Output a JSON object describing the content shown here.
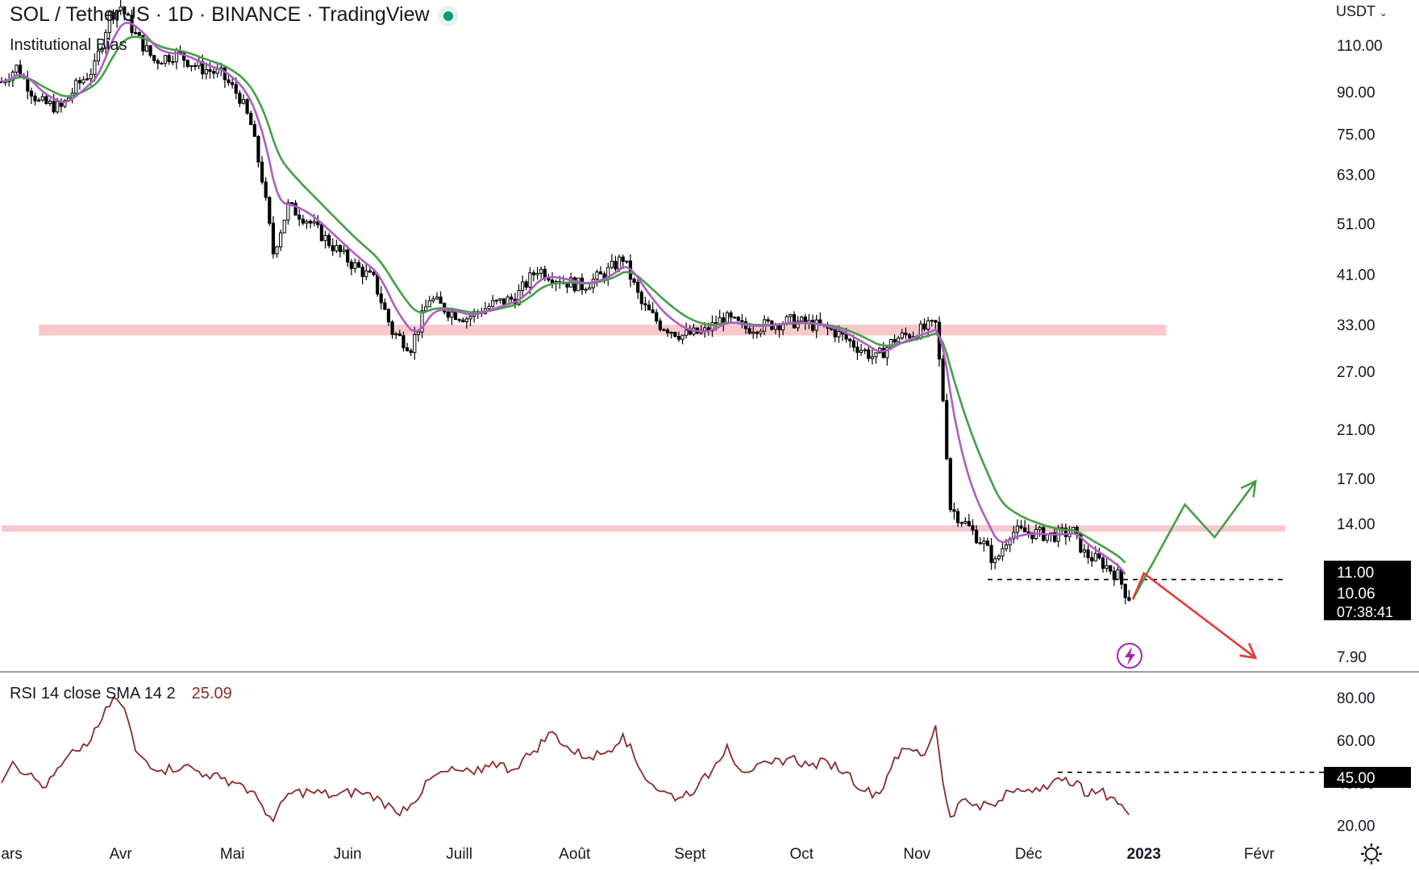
{
  "header": {
    "title": "SOL / TetherUS · 1D · BINANCE · TradingView",
    "indicator": "Institutional Bias",
    "currency": "USDT"
  },
  "rsi_legend": {
    "label": "RSI 14 close SMA 14 2",
    "value": "25.09"
  },
  "price_badges": {
    "level": "11.00",
    "last": "10.06",
    "countdown": "07:38:41"
  },
  "rsi_badge": "45.00",
  "colors": {
    "candle": "#000000",
    "ema_fast": "#b05cc7",
    "ema_slow": "#43a047",
    "support_zone": "#f8c9cc",
    "rsi": "#8b2a2a",
    "arrow_up": "#43a047",
    "arrow_down": "#e53935"
  },
  "icons": {
    "flash": "lightning-icon",
    "settings": "gear-icon"
  },
  "chart_data": [
    {
      "type": "candlestick",
      "title": "SOL / TetherUS · 1D · BINANCE · TradingView",
      "y_scale": "log",
      "y_ticks": [
        "110.00",
        "90.00",
        "75.00",
        "63.00",
        "51.00",
        "41.00",
        "33.00",
        "27.00",
        "21.00",
        "17.00",
        "14.00",
        "11.00",
        "7.90"
      ],
      "x_ticks": [
        "Mars",
        "Avr",
        "Mai",
        "Juin",
        "Juill",
        "Août",
        "Sept",
        "Oct",
        "Nov",
        "Déc",
        "2023",
        "Févr"
      ],
      "price_path": [
        {
          "date": "2022-02-28",
          "close": 94
        },
        {
          "date": "2022-03-04",
          "close": 100
        },
        {
          "date": "2022-03-10",
          "close": 86
        },
        {
          "date": "2022-03-16",
          "close": 84
        },
        {
          "date": "2022-03-20",
          "close": 92
        },
        {
          "date": "2022-03-25",
          "close": 100
        },
        {
          "date": "2022-03-29",
          "close": 125
        },
        {
          "date": "2022-04-01",
          "close": 130
        },
        {
          "date": "2022-04-05",
          "close": 115
        },
        {
          "date": "2022-04-10",
          "close": 103
        },
        {
          "date": "2022-04-16",
          "close": 106
        },
        {
          "date": "2022-04-22",
          "close": 100
        },
        {
          "date": "2022-04-28",
          "close": 97
        },
        {
          "date": "2022-05-03",
          "close": 88
        },
        {
          "date": "2022-05-06",
          "close": 78
        },
        {
          "date": "2022-05-09",
          "close": 62
        },
        {
          "date": "2022-05-12",
          "close": 45
        },
        {
          "date": "2022-05-16",
          "close": 55
        },
        {
          "date": "2022-05-21",
          "close": 52
        },
        {
          "date": "2022-05-27",
          "close": 47
        },
        {
          "date": "2022-06-02",
          "close": 43
        },
        {
          "date": "2022-06-08",
          "close": 40
        },
        {
          "date": "2022-06-13",
          "close": 32
        },
        {
          "date": "2022-06-18",
          "close": 30
        },
        {
          "date": "2022-06-23",
          "close": 37
        },
        {
          "date": "2022-06-28",
          "close": 35
        },
        {
          "date": "2022-07-03",
          "close": 34
        },
        {
          "date": "2022-07-10",
          "close": 36
        },
        {
          "date": "2022-07-16",
          "close": 37
        },
        {
          "date": "2022-07-22",
          "close": 42
        },
        {
          "date": "2022-07-28",
          "close": 40
        },
        {
          "date": "2022-08-03",
          "close": 39
        },
        {
          "date": "2022-08-09",
          "close": 41
        },
        {
          "date": "2022-08-14",
          "close": 44
        },
        {
          "date": "2022-08-19",
          "close": 36
        },
        {
          "date": "2022-08-24",
          "close": 33
        },
        {
          "date": "2022-08-30",
          "close": 31.5
        },
        {
          "date": "2022-09-05",
          "close": 32
        },
        {
          "date": "2022-09-10",
          "close": 34
        },
        {
          "date": "2022-09-16",
          "close": 32.5
        },
        {
          "date": "2022-09-22",
          "close": 33
        },
        {
          "date": "2022-09-28",
          "close": 33.5
        },
        {
          "date": "2022-10-04",
          "close": 33
        },
        {
          "date": "2022-10-10",
          "close": 32
        },
        {
          "date": "2022-10-16",
          "close": 30
        },
        {
          "date": "2022-10-21",
          "close": 28.5
        },
        {
          "date": "2022-10-26",
          "close": 31
        },
        {
          "date": "2022-11-01",
          "close": 32
        },
        {
          "date": "2022-11-06",
          "close": 33
        },
        {
          "date": "2022-11-08",
          "close": 24
        },
        {
          "date": "2022-11-10",
          "close": 15
        },
        {
          "date": "2022-11-14",
          "close": 14
        },
        {
          "date": "2022-11-19",
          "close": 12.8
        },
        {
          "date": "2022-11-22",
          "close": 11.8
        },
        {
          "date": "2022-11-26",
          "close": 13.5
        },
        {
          "date": "2022-12-01",
          "close": 13.5
        },
        {
          "date": "2022-12-07",
          "close": 13.3
        },
        {
          "date": "2022-12-13",
          "close": 13.5
        },
        {
          "date": "2022-12-16",
          "close": 12.3
        },
        {
          "date": "2022-12-21",
          "close": 11.8
        },
        {
          "date": "2022-12-25",
          "close": 11.2
        },
        {
          "date": "2022-12-28",
          "close": 10.06
        }
      ],
      "ema_fast_name": "",
      "ema_slow_name": "",
      "support_zones": [
        {
          "low": 31.5,
          "high": 33,
          "from": "2022-03-10",
          "to": "2023-01-07"
        },
        {
          "low": 13.55,
          "high": 13.9,
          "from": "2022-02-28",
          "to": "2023-02-08"
        }
      ],
      "dashed_levels": [
        {
          "value": 11.0,
          "from": "2022-11-20",
          "to": "2023-02-08"
        }
      ],
      "scenario_up": [
        {
          "date": "2022-12-29",
          "value": 10.1
        },
        {
          "date": "2023-01-12",
          "value": 15.2
        },
        {
          "date": "2023-01-20",
          "value": 13.2
        },
        {
          "date": "2023-01-31",
          "value": 16.8
        }
      ],
      "scenario_down": [
        {
          "date": "2022-12-29",
          "value": 10.1
        },
        {
          "date": "2023-01-01",
          "value": 11.3
        },
        {
          "date": "2023-01-31",
          "value": 7.85
        }
      ]
    },
    {
      "type": "line",
      "title": "RSI 14 close SMA 14 2",
      "y_ticks": [
        "80.00",
        "60.00",
        "40.00",
        "20.00"
      ],
      "ylim": [
        18,
        88
      ],
      "current": 25.09,
      "dashed_level": 45.0,
      "rsi_path": [
        {
          "date": "2022-02-28",
          "value": 40
        },
        {
          "date": "2022-03-03",
          "value": 50
        },
        {
          "date": "2022-03-07",
          "value": 44
        },
        {
          "date": "2022-03-12",
          "value": 38
        },
        {
          "date": "2022-03-16",
          "value": 48
        },
        {
          "date": "2022-03-20",
          "value": 55
        },
        {
          "date": "2022-03-24",
          "value": 60
        },
        {
          "date": "2022-03-27",
          "value": 70
        },
        {
          "date": "2022-03-30",
          "value": 80
        },
        {
          "date": "2022-04-02",
          "value": 75
        },
        {
          "date": "2022-04-05",
          "value": 55
        },
        {
          "date": "2022-04-08",
          "value": 50
        },
        {
          "date": "2022-04-12",
          "value": 46
        },
        {
          "date": "2022-04-18",
          "value": 48
        },
        {
          "date": "2022-04-24",
          "value": 44
        },
        {
          "date": "2022-04-28",
          "value": 42
        },
        {
          "date": "2022-05-03",
          "value": 40
        },
        {
          "date": "2022-05-08",
          "value": 32
        },
        {
          "date": "2022-05-12",
          "value": 22
        },
        {
          "date": "2022-05-16",
          "value": 35
        },
        {
          "date": "2022-05-22",
          "value": 36
        },
        {
          "date": "2022-05-28",
          "value": 34
        },
        {
          "date": "2022-06-04",
          "value": 36
        },
        {
          "date": "2022-06-10",
          "value": 32
        },
        {
          "date": "2022-06-14",
          "value": 26
        },
        {
          "date": "2022-06-18",
          "value": 30
        },
        {
          "date": "2022-06-24",
          "value": 43
        },
        {
          "date": "2022-06-30",
          "value": 46
        },
        {
          "date": "2022-07-05",
          "value": 44
        },
        {
          "date": "2022-07-10",
          "value": 50
        },
        {
          "date": "2022-07-15",
          "value": 46
        },
        {
          "date": "2022-07-21",
          "value": 55
        },
        {
          "date": "2022-07-26",
          "value": 64
        },
        {
          "date": "2022-07-31",
          "value": 55
        },
        {
          "date": "2022-08-05",
          "value": 52
        },
        {
          "date": "2022-08-10",
          "value": 55
        },
        {
          "date": "2022-08-14",
          "value": 63
        },
        {
          "date": "2022-08-19",
          "value": 45
        },
        {
          "date": "2022-08-24",
          "value": 36
        },
        {
          "date": "2022-08-29",
          "value": 33
        },
        {
          "date": "2022-09-03",
          "value": 38
        },
        {
          "date": "2022-09-07",
          "value": 46
        },
        {
          "date": "2022-09-11",
          "value": 58
        },
        {
          "date": "2022-09-14",
          "value": 47
        },
        {
          "date": "2022-09-18",
          "value": 46
        },
        {
          "date": "2022-09-23",
          "value": 49
        },
        {
          "date": "2022-09-28",
          "value": 52
        },
        {
          "date": "2022-10-03",
          "value": 48
        },
        {
          "date": "2022-10-08",
          "value": 50
        },
        {
          "date": "2022-10-13",
          "value": 45
        },
        {
          "date": "2022-10-18",
          "value": 36
        },
        {
          "date": "2022-10-22",
          "value": 35
        },
        {
          "date": "2022-10-26",
          "value": 52
        },
        {
          "date": "2022-10-30",
          "value": 56
        },
        {
          "date": "2022-11-03",
          "value": 53
        },
        {
          "date": "2022-11-06",
          "value": 67
        },
        {
          "date": "2022-11-08",
          "value": 40
        },
        {
          "date": "2022-11-10",
          "value": 24
        },
        {
          "date": "2022-11-13",
          "value": 32
        },
        {
          "date": "2022-11-17",
          "value": 30
        },
        {
          "date": "2022-11-22",
          "value": 29
        },
        {
          "date": "2022-11-26",
          "value": 36
        },
        {
          "date": "2022-12-01",
          "value": 37
        },
        {
          "date": "2022-12-05",
          "value": 39
        },
        {
          "date": "2022-12-10",
          "value": 41
        },
        {
          "date": "2022-12-14",
          "value": 41
        },
        {
          "date": "2022-12-16",
          "value": 34
        },
        {
          "date": "2022-12-20",
          "value": 36
        },
        {
          "date": "2022-12-24",
          "value": 33
        },
        {
          "date": "2022-12-28",
          "value": 25.09
        }
      ]
    }
  ]
}
